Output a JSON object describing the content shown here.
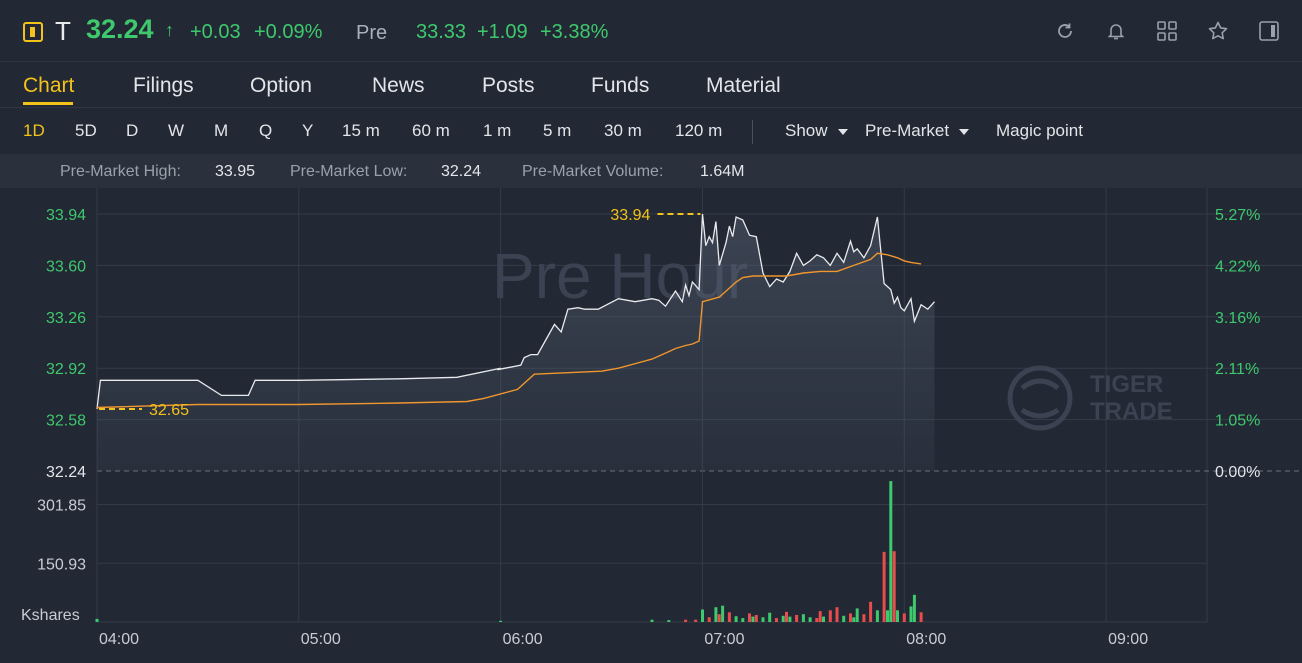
{
  "header": {
    "symbol": "T",
    "price": "32.24",
    "change": "+0.03",
    "change_pct": "+0.09%",
    "pre_label": "Pre",
    "pre_price": "33.33",
    "pre_change": "+1.09",
    "pre_change_pct": "+3.38%",
    "icons": [
      "refresh-icon",
      "bell-icon",
      "grid-icon",
      "star-icon",
      "panel-icon"
    ]
  },
  "tabs": [
    "Chart",
    "Filings",
    "Option",
    "News",
    "Posts",
    "Funds",
    "Material"
  ],
  "periods": [
    "1D",
    "5D",
    "D",
    "W",
    "M",
    "Q",
    "Y",
    "15 m",
    "60 m",
    "1 m",
    "5 m",
    "30 m",
    "120 m"
  ],
  "toolbar": {
    "show_label": "Show",
    "session_label": "Pre-Market",
    "magic_label": "Magic point"
  },
  "stats": {
    "high_label": "Pre-Market High:",
    "high_value": "33.95",
    "low_label": "Pre-Market Low:",
    "low_value": "32.24",
    "volume_label": "Pre-Market Volume:",
    "volume_value": "1.64M"
  },
  "watermarks": {
    "pre_hour": "Pre Hour",
    "brand_1": "TIGER",
    "brand_2": "TRADE"
  },
  "colors": {
    "up": "#3ec96d",
    "down": "#e94c4c",
    "accent": "#f3c21b",
    "avg": "#f0962e",
    "price_line": "#e8eaed"
  },
  "chart_data": [
    {
      "type": "line",
      "x_ticks": [
        "04:00",
        "05:00",
        "06:00",
        "07:00",
        "08:00",
        "09:00"
      ],
      "y_ticks_left": [
        "33.94",
        "33.60",
        "33.26",
        "32.92",
        "32.58",
        "32.24"
      ],
      "y_ticks_right": [
        "5.27%",
        "4.22%",
        "3.16%",
        "2.11%",
        "1.05%",
        "0.00%"
      ],
      "ylim": [
        32.24,
        33.94
      ],
      "annotations": [
        {
          "label": "33.94",
          "x": "07:00",
          "y": 33.94
        },
        {
          "label": "32.65",
          "x": "04:00",
          "y": 32.65
        }
      ],
      "series": [
        {
          "x": [
            "04:00",
            "04:01",
            "04:30",
            "04:37",
            "04:45",
            "04:47",
            "04:55",
            "05:00",
            "05:30",
            "05:47",
            "06:00",
            "05:59",
            "06:06",
            "06:07",
            "06:09",
            "06:11",
            "06:14",
            "06:16",
            "06:18",
            "06:20",
            "06:23",
            "06:25",
            "06:27",
            "06:29",
            "06:35",
            "06:40",
            "06:45",
            "06:47",
            "06:49",
            "06:52",
            "06:54",
            "06:55",
            "06:56",
            "06:57",
            "06:59",
            "07:00",
            "07:01",
            "07:02",
            "07:03",
            "07:04",
            "07:05",
            "07:07",
            "07:08",
            "07:09",
            "07:10",
            "07:12",
            "07:14",
            "07:16",
            "07:18",
            "07:20",
            "07:22",
            "07:24",
            "07:26",
            "07:28",
            "07:30",
            "07:32",
            "07:34",
            "07:36",
            "07:38",
            "07:40",
            "07:42",
            "07:44",
            "07:45",
            "07:46",
            "07:48",
            "07:50",
            "07:52",
            "07:54",
            "07:55",
            "07:56",
            "07:57",
            "07:58",
            "07:59",
            "08:00",
            "08:02",
            "08:03",
            "08:05",
            "08:07",
            "08:09"
          ],
          "values": [
            32.65,
            32.84,
            32.84,
            32.74,
            32.74,
            32.84,
            32.84,
            32.84,
            32.85,
            32.86,
            32.92,
            32.91,
            32.94,
            32.99,
            33.01,
            33.01,
            33.13,
            33.21,
            33.16,
            33.31,
            33.32,
            33.31,
            33.31,
            33.31,
            33.38,
            33.36,
            33.38,
            33.37,
            33.33,
            33.43,
            33.36,
            33.47,
            33.4,
            33.49,
            33.44,
            33.94,
            33.73,
            33.79,
            33.75,
            33.89,
            33.6,
            33.75,
            33.86,
            33.79,
            33.92,
            33.9,
            33.8,
            33.79,
            33.55,
            33.46,
            33.51,
            33.49,
            33.56,
            33.68,
            33.6,
            33.63,
            33.67,
            33.65,
            33.6,
            33.68,
            33.62,
            33.76,
            33.69,
            33.71,
            33.65,
            33.73,
            33.92,
            33.48,
            33.46,
            33.44,
            33.35,
            33.39,
            33.32,
            33.3,
            33.38,
            33.23,
            33.34,
            33.31,
            33.36
          ]
        },
        {
          "x": [
            "04:00",
            "04:30",
            "05:00",
            "05:30",
            "05:50",
            "05:55",
            "06:05",
            "06:10",
            "06:30",
            "06:35",
            "06:45",
            "06:50",
            "06:52",
            "06:55",
            "06:57",
            "06:59",
            "07:00",
            "07:05",
            "07:10",
            "07:12",
            "07:15",
            "07:20",
            "07:25",
            "07:30",
            "07:35",
            "07:40",
            "07:45",
            "07:50",
            "07:52",
            "07:55",
            "07:58",
            "08:00",
            "08:02",
            "08:05"
          ],
          "values": [
            32.66,
            32.68,
            32.68,
            32.69,
            32.7,
            32.72,
            32.78,
            32.88,
            32.9,
            32.92,
            32.98,
            33.03,
            33.05,
            33.07,
            33.08,
            33.1,
            33.36,
            33.39,
            33.49,
            33.52,
            33.53,
            33.53,
            33.53,
            33.55,
            33.56,
            33.56,
            33.6,
            33.64,
            33.68,
            33.67,
            33.65,
            33.63,
            33.62,
            33.61
          ]
        }
      ]
    },
    {
      "type": "bar",
      "ylabel": "Kshares",
      "y_ticks": [
        "301.85",
        "150.93"
      ],
      "ylim": [
        0,
        370
      ],
      "series": [
        {
          "x": [
            "04:00",
            "06:00",
            "06:45",
            "06:50",
            "06:55",
            "06:58",
            "07:00",
            "07:02",
            "07:04",
            "07:05",
            "07:06",
            "07:08",
            "07:10",
            "07:12",
            "07:14",
            "07:15",
            "07:16",
            "07:18",
            "07:20",
            "07:22",
            "07:24",
            "07:25",
            "07:26",
            "07:28",
            "07:30",
            "07:32",
            "07:34",
            "07:35",
            "07:36",
            "07:38",
            "07:40",
            "07:42",
            "07:44",
            "07:45",
            "07:46",
            "07:48",
            "07:50",
            "07:52",
            "07:54",
            "07:55",
            "07:56",
            "07:57",
            "07:58",
            "08:00",
            "08:02",
            "08:03",
            "08:05"
          ],
          "values": [
            8,
            3,
            6,
            5,
            6,
            6,
            32,
            12,
            38,
            20,
            42,
            25,
            15,
            10,
            22,
            14,
            18,
            12,
            24,
            10,
            16,
            26,
            14,
            18,
            20,
            12,
            10,
            28,
            14,
            30,
            38,
            16,
            22,
            12,
            35,
            20,
            52,
            30,
            180,
            30,
            362,
            182,
            30,
            22,
            40,
            70,
            25
          ],
          "colors": [
            "up",
            "up",
            "up",
            "up",
            "down",
            "down",
            "up",
            "down",
            "up",
            "down",
            "up",
            "down",
            "up",
            "up",
            "down",
            "up",
            "down",
            "up",
            "up",
            "down",
            "up",
            "down",
            "up",
            "down",
            "up",
            "up",
            "down",
            "down",
            "up",
            "down",
            "down",
            "up",
            "down",
            "up",
            "up",
            "down",
            "down",
            "up",
            "down",
            "up",
            "up",
            "down",
            "up",
            "down",
            "up",
            "up",
            "down"
          ]
        }
      ]
    }
  ]
}
